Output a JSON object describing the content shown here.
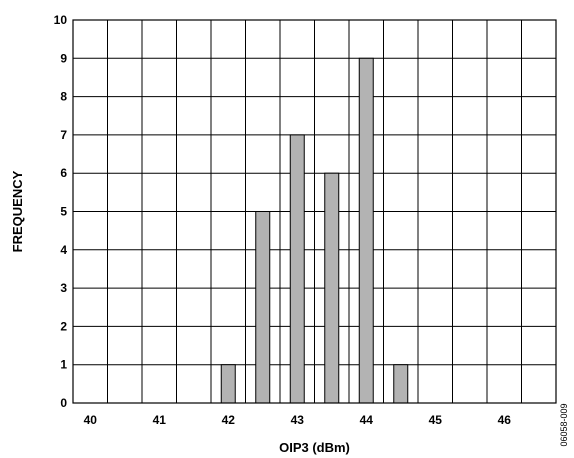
{
  "chart_data": {
    "type": "bar",
    "title": "",
    "xlabel": "OIP3 (dBm)",
    "ylabel": "FREQUENCY",
    "xlim": [
      39.75,
      46.75
    ],
    "ylim": [
      0,
      10
    ],
    "x_ticks": [
      40,
      41,
      42,
      43,
      44,
      45,
      46
    ],
    "y_ticks": [
      0,
      1,
      2,
      3,
      4,
      5,
      6,
      7,
      8,
      9,
      10
    ],
    "x": [
      42.0,
      42.5,
      43.0,
      43.5,
      44.0,
      44.5
    ],
    "values": [
      1,
      5,
      7,
      6,
      9,
      1
    ],
    "bar_color": "#b3b3b3",
    "grid": true,
    "figure_id": "06058-009"
  }
}
